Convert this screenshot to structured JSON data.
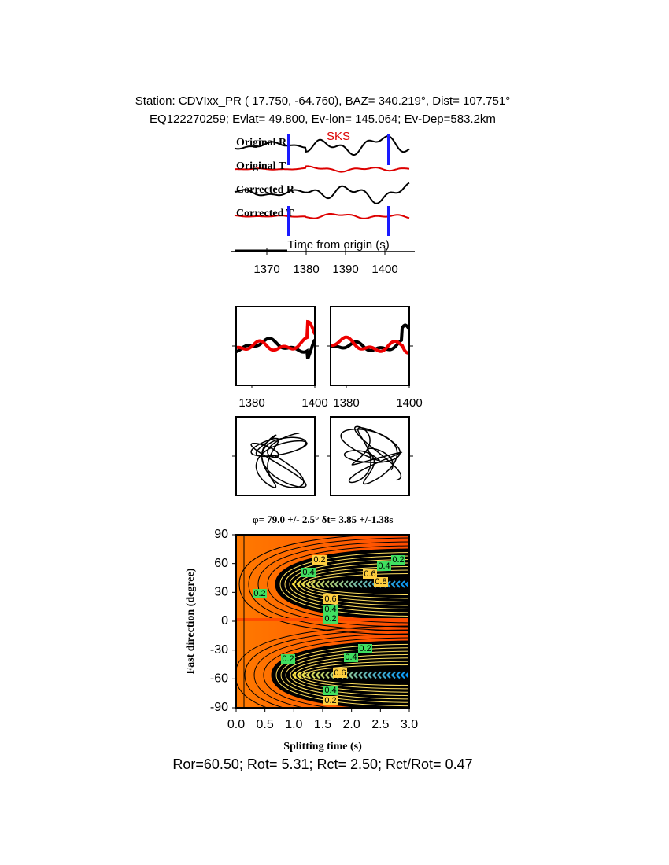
{
  "header": {
    "line1": "Station: CDVIxx_PR (  17.750,  -64.760), BAZ=  340.219°, Dist=  107.751°",
    "line2": "EQ122270259; Evlat=  49.800, Ev-lon= 145.064; Ev-Dep=583.2km"
  },
  "traces": {
    "phase": "SKS",
    "labels": [
      "Original R",
      "Original T",
      "Corrected R",
      "Corrected T"
    ],
    "xlabel": "Time from origin (s)",
    "xticks": [
      1370,
      1380,
      1390,
      1400
    ]
  },
  "particle": {
    "left_xticks": [
      1380,
      1400
    ],
    "right_xticks": [
      1380,
      1400
    ]
  },
  "grid": {
    "title": "φ= 79.0 +/- 2.5° δt= 3.85 +/-1.38s",
    "ylabel": "Fast direction (degree)",
    "xlabel": "Splitting time (s)",
    "yticks": [
      90,
      60,
      30,
      0,
      -30,
      -60,
      -90
    ],
    "xticks": [
      {
        "value": 0,
        "label": "0.0"
      },
      {
        "value": 0.5,
        "label": "0.5"
      },
      {
        "value": 1,
        "label": "1.0"
      },
      {
        "value": 1.5,
        "label": "1.5"
      },
      {
        "value": 2,
        "label": "2.0"
      },
      {
        "value": 2.5,
        "label": "2.5"
      },
      {
        "value": 3,
        "label": "3.0"
      }
    ],
    "contour_labels": [
      "0.2",
      "0.4",
      "0.2",
      "0.6",
      "0.4",
      "0.2",
      "0.6",
      "0.4",
      "0.2",
      "0.8",
      "0.2",
      "0.4",
      "0.6",
      "0.2",
      "0.4",
      "0.2"
    ]
  },
  "footer": "Ror=60.50; Rot= 5.31; Rct= 2.50; Rct/Rot= 0.47"
}
